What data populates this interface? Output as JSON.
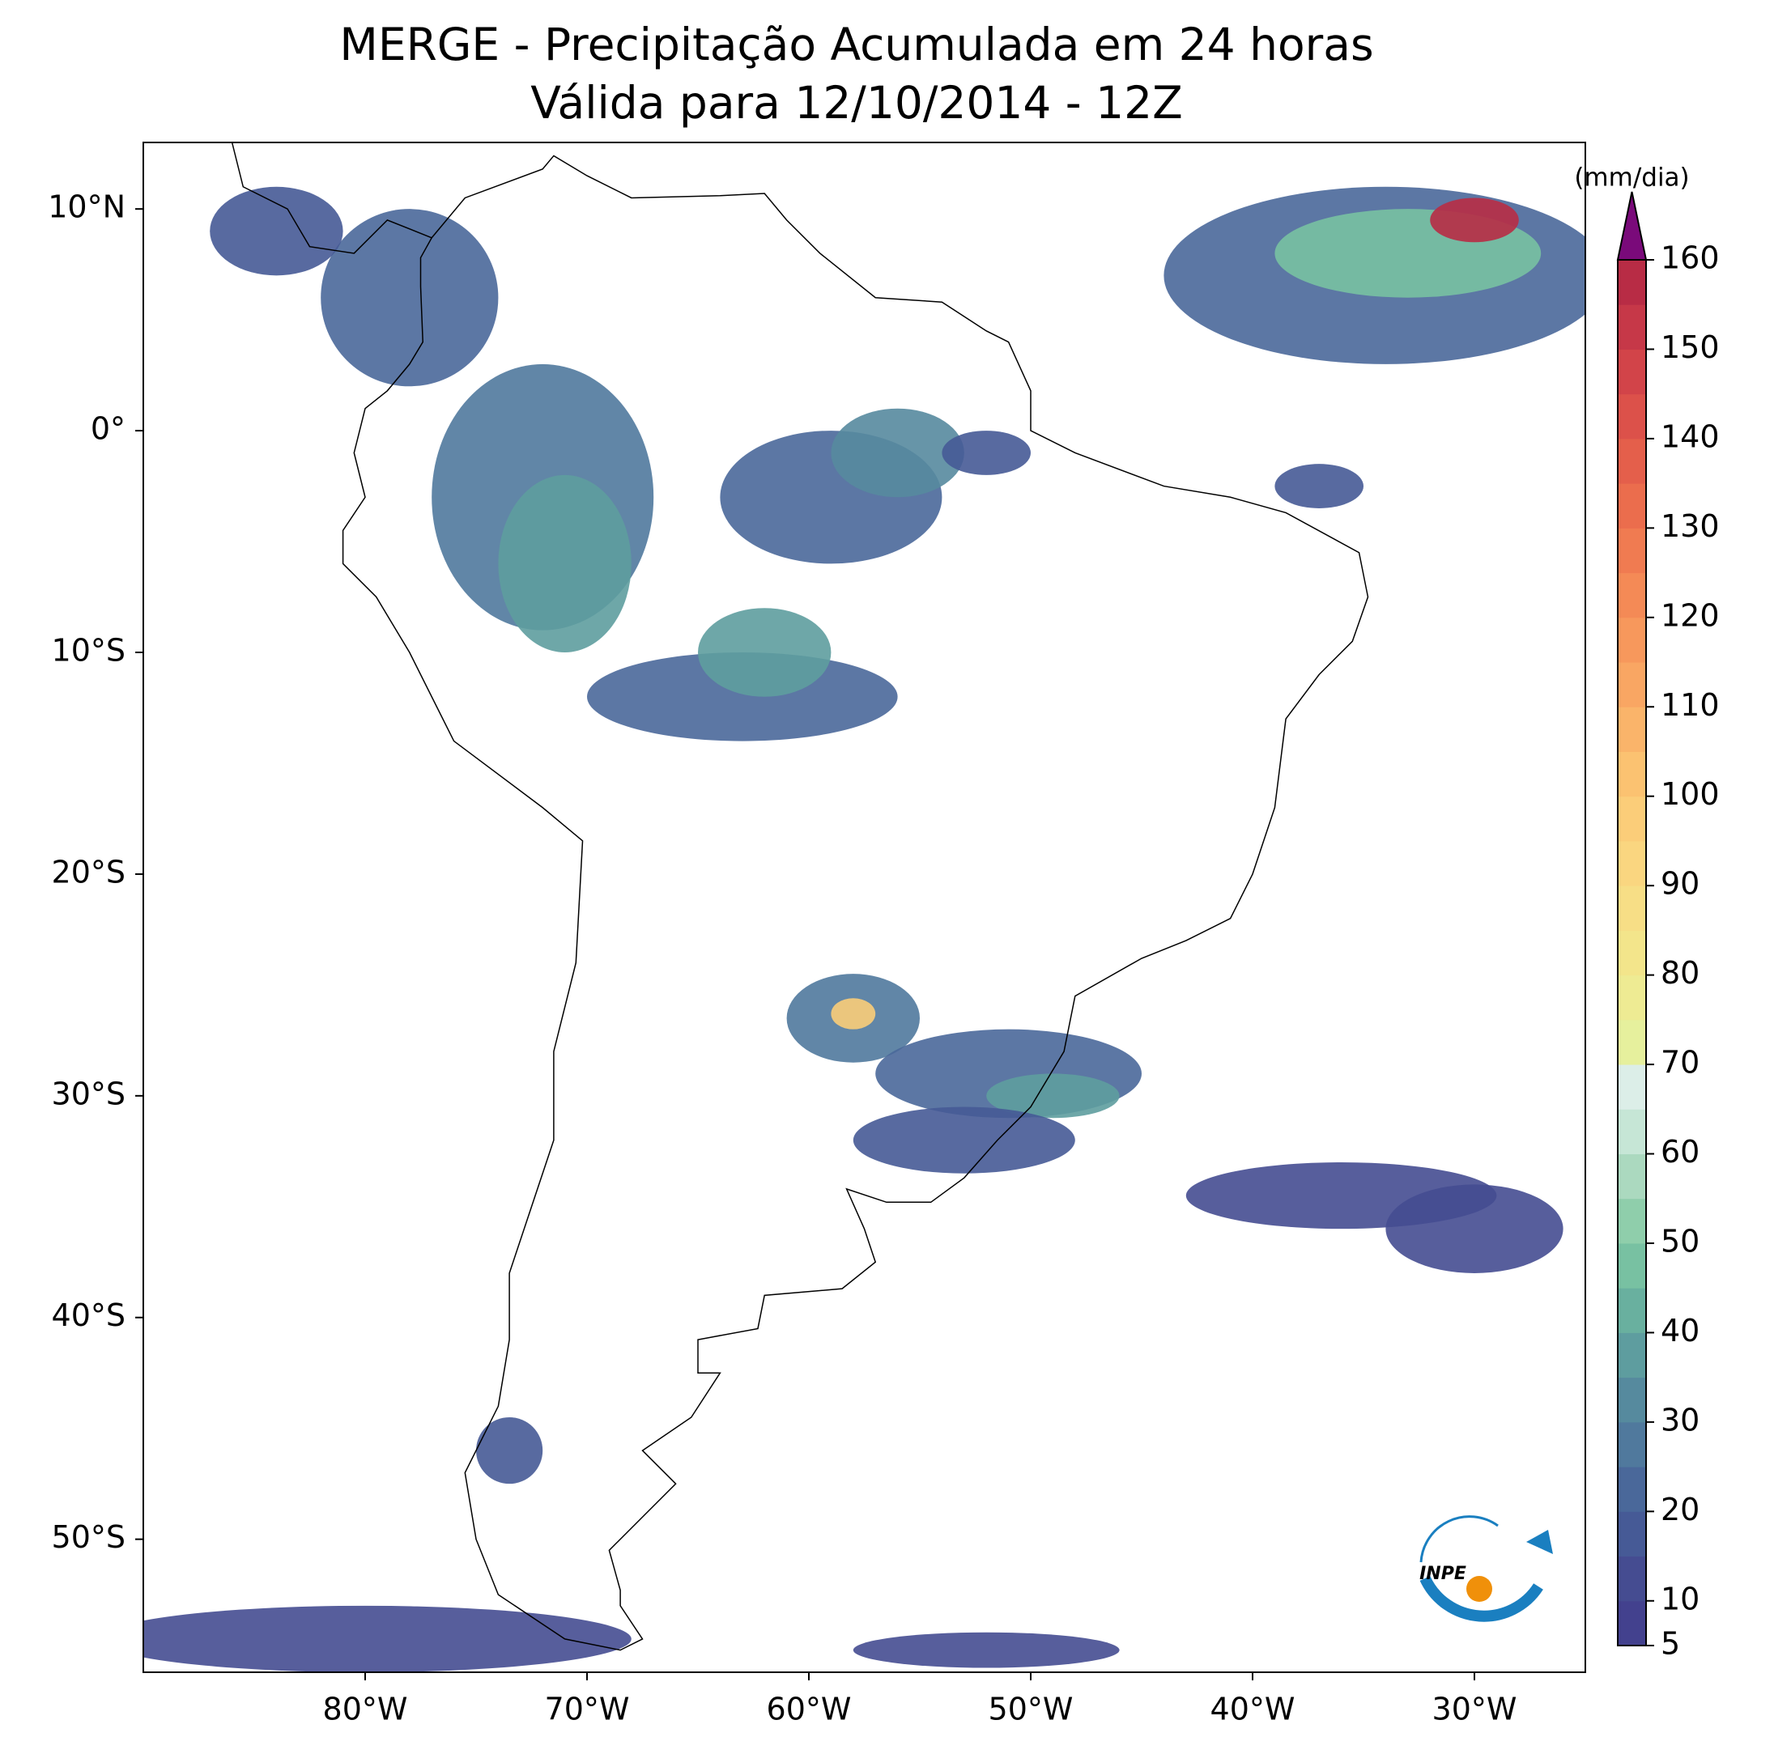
{
  "title": "MERGE - Precipitação Acumulada em 24 horas",
  "subtitle": "Válida para 12/10/2014 - 12Z",
  "map": {
    "xlim": [
      -90,
      -25
    ],
    "ylim": [
      -56,
      13
    ],
    "xticks": [
      {
        "value": -80,
        "label": "80°W"
      },
      {
        "value": -70,
        "label": "70°W"
      },
      {
        "value": -60,
        "label": "60°W"
      },
      {
        "value": -50,
        "label": "50°W"
      },
      {
        "value": -40,
        "label": "40°W"
      },
      {
        "value": -30,
        "label": "30°W"
      }
    ],
    "yticks": [
      {
        "value": 10,
        "label": "10°N"
      },
      {
        "value": 0,
        "label": "0°"
      },
      {
        "value": -10,
        "label": "10°S"
      },
      {
        "value": -20,
        "label": "20°S"
      },
      {
        "value": -30,
        "label": "30°S"
      },
      {
        "value": -40,
        "label": "40°S"
      },
      {
        "value": -50,
        "label": "50°S"
      }
    ]
  },
  "colorbar": {
    "label": "(mm/dia)",
    "levels": [
      5,
      10,
      15,
      20,
      25,
      30,
      35,
      40,
      45,
      50,
      55,
      60,
      65,
      70,
      75,
      80,
      85,
      90,
      95,
      100,
      105,
      110,
      115,
      120,
      125,
      130,
      135,
      140,
      145,
      150,
      155,
      160
    ],
    "colors": [
      "#43418e",
      "#454c91",
      "#465a96",
      "#4a689a",
      "#50799d",
      "#568a9e",
      "#5e9d9f",
      "#69b09f",
      "#78c1a2",
      "#8fceab",
      "#abd9bf",
      "#c6e6d6",
      "#dceee8",
      "#e6f09d",
      "#eeeb93",
      "#f3e58b",
      "#f7de86",
      "#fad680",
      "#fbcd79",
      "#fbc271",
      "#fab46a",
      "#f9a663",
      "#f7985c",
      "#f48a56",
      "#f07b51",
      "#eb6d4d",
      "#e45f4b",
      "#dc514a",
      "#d24449",
      "#c63848",
      "#b82c45"
    ],
    "over_color": "#7a0a7a",
    "ticks": [
      5,
      10,
      20,
      30,
      40,
      50,
      60,
      70,
      80,
      90,
      100,
      110,
      120,
      130,
      140,
      150,
      160
    ]
  },
  "logo": "INPE"
}
